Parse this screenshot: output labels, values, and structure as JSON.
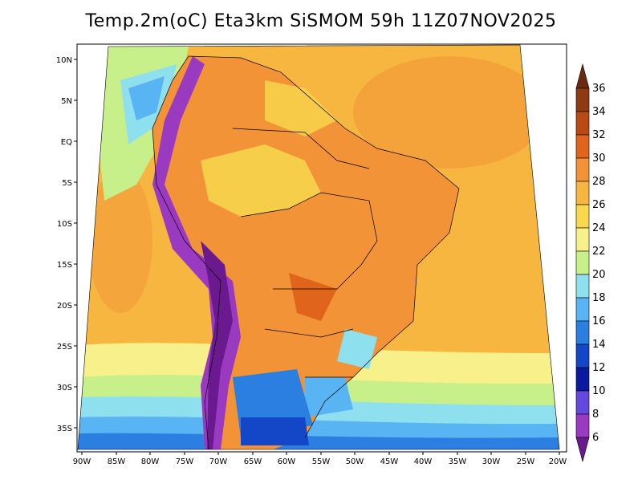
{
  "title": "Temp.2m(oC) Eta3km SiSMOM 59h 11Z07NOV2025",
  "axes": {
    "lat_labels": [
      "10N",
      "5N",
      "EQ",
      "5S",
      "10S",
      "15S",
      "20S",
      "25S",
      "30S",
      "35S"
    ],
    "lon_labels": [
      "90W",
      "85W",
      "80W",
      "75W",
      "70W",
      "65W",
      "60W",
      "55W",
      "50W",
      "45W",
      "40W",
      "35W",
      "30W",
      "25W",
      "20W"
    ]
  },
  "colorbar": {
    "labels": [
      "36",
      "34",
      "32",
      "30",
      "28",
      "26",
      "24",
      "22",
      "20",
      "18",
      "16",
      "14",
      "12",
      "10",
      "8",
      "6"
    ],
    "colors": [
      "#6b2a10",
      "#8f3a13",
      "#b94a14",
      "#e0641c",
      "#f29338",
      "#f6b63f",
      "#f8d84c",
      "#f8f08a",
      "#c8f08a",
      "#8fe0ee",
      "#58b4f2",
      "#2a7fe0",
      "#1446c8",
      "#0a1a9e",
      "#6448e0",
      "#9a3ac0",
      "#6a1a8e"
    ]
  },
  "colors": {
    "ocean_warm": "#f6b63f",
    "land_hot": "#f29338",
    "land_mid": "#f8d84c",
    "andes": "#6a1a8e"
  }
}
